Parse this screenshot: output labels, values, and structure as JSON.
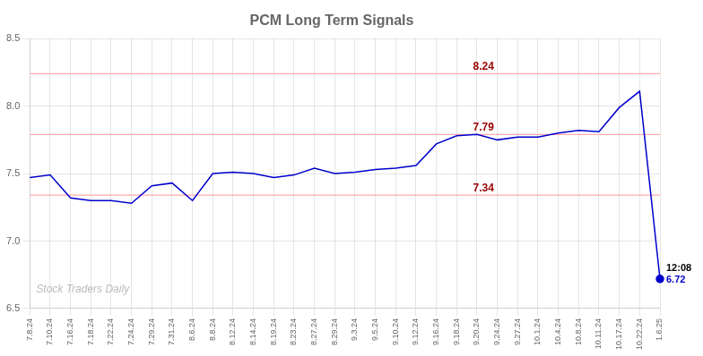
{
  "chart_data": {
    "type": "line",
    "title": "PCM Long Term Signals",
    "categories": [
      "7.8.24",
      "7.10.24",
      "7.16.24",
      "7.18.24",
      "7.22.24",
      "7.24.24",
      "7.29.24",
      "7.31.24",
      "8.6.24",
      "8.8.24",
      "8.12.24",
      "8.14.24",
      "8.19.24",
      "8.23.24",
      "8.27.24",
      "8.29.24",
      "9.3.24",
      "9.5.24",
      "9.10.24",
      "9.12.24",
      "9.16.24",
      "9.18.24",
      "9.20.24",
      "9.24.24",
      "9.27.24",
      "10.1.24",
      "10.4.24",
      "10.8.24",
      "10.11.24",
      "10.17.24",
      "10.22.24",
      "1.6.25"
    ],
    "values": [
      7.47,
      7.49,
      7.32,
      7.3,
      7.3,
      7.28,
      7.41,
      7.43,
      7.3,
      7.5,
      7.51,
      7.5,
      7.47,
      7.49,
      7.54,
      7.5,
      7.51,
      7.53,
      7.54,
      7.56,
      7.72,
      7.78,
      7.79,
      7.75,
      7.77,
      7.77,
      7.8,
      7.82,
      7.81,
      7.99,
      8.11,
      6.72
    ],
    "color": "#0000cc",
    "ylim": [
      6.5,
      8.5
    ],
    "yticks": [
      6.5,
      {
        "value": 7,
        "label": "7.0"
      },
      7.5,
      {
        "value": 8,
        "label": "8.0"
      },
      8.5
    ],
    "grid": true,
    "reference_lines": [
      {
        "value": 8.24,
        "label": "8.24",
        "color": "#ffaaaa",
        "label_color": "#990000"
      },
      {
        "value": 7.79,
        "label": "7.79",
        "color": "#ffaaaa",
        "label_color": "#990000"
      },
      {
        "value": 7.34,
        "label": "7.34",
        "color": "#ffaaaa",
        "label_color": "#990000"
      }
    ],
    "annotations": [
      {
        "x": "1.6.25",
        "y": 6.72,
        "marker": "circle",
        "labels": [
          {
            "text": "12:08",
            "color": "#000000"
          },
          {
            "text": "6.72",
            "color": "#0000cc"
          }
        ]
      }
    ],
    "watermark": {
      "text": "Stock Traders Daily",
      "color": "#aaaaaa"
    }
  }
}
